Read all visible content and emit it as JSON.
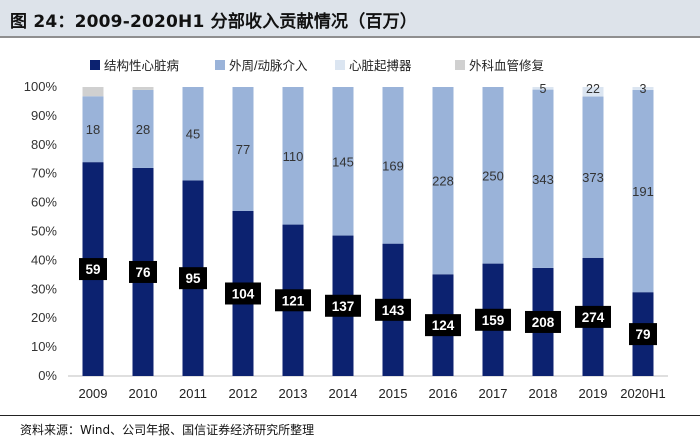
{
  "title": "图 24：2009-2020H1 分部收入贡献情况（百万）",
  "source": "资料来源：Wind、公司年报、国信证券经济研究所整理",
  "chart_data": {
    "type": "bar",
    "stacked": true,
    "normalized": true,
    "categories": [
      "2009",
      "2010",
      "2011",
      "2012",
      "2013",
      "2014",
      "2015",
      "2016",
      "2017",
      "2018",
      "2019",
      "2020H1"
    ],
    "series": [
      {
        "name": "结构性心脏病",
        "color": "#0c2270",
        "values": [
          59,
          76,
          95,
          104,
          121,
          137,
          143,
          124,
          159,
          208,
          274,
          79
        ],
        "share_pct": [
          74,
          72,
          67.7,
          57.1,
          52.4,
          48.6,
          45.8,
          35.2,
          38.9,
          37.4,
          40.9,
          29
        ]
      },
      {
        "name": "外周/动脉介入",
        "color": "#9ab3d9",
        "values": [
          18,
          28,
          45,
          77,
          110,
          145,
          169,
          228,
          250,
          343,
          373,
          191
        ],
        "share_pct": [
          22.8,
          27,
          32.3,
          42.9,
          47.6,
          51.4,
          54.2,
          64.8,
          61.1,
          61.7,
          55.8,
          70
        ]
      },
      {
        "name": "心脏起搏器",
        "color": "#dbe5f1",
        "values": [
          null,
          null,
          null,
          null,
          null,
          null,
          null,
          null,
          null,
          5,
          22,
          3
        ],
        "share_pct": [
          0,
          0,
          0,
          0,
          0,
          0,
          0,
          0,
          0,
          0.9,
          3.3,
          1
        ]
      },
      {
        "name": "外科血管修复",
        "color": "#d0d0d0",
        "values": [
          null,
          null,
          null,
          null,
          null,
          null,
          null,
          null,
          null,
          null,
          null,
          null
        ],
        "share_pct": [
          3.2,
          1,
          0,
          0,
          0,
          0,
          0,
          0,
          0,
          0,
          0,
          0
        ]
      }
    ],
    "yticks": [
      "0%",
      "10%",
      "20%",
      "30%",
      "40%",
      "50%",
      "60%",
      "70%",
      "80%",
      "90%",
      "100%"
    ],
    "ylim": [
      0,
      100
    ],
    "legend": "top"
  }
}
